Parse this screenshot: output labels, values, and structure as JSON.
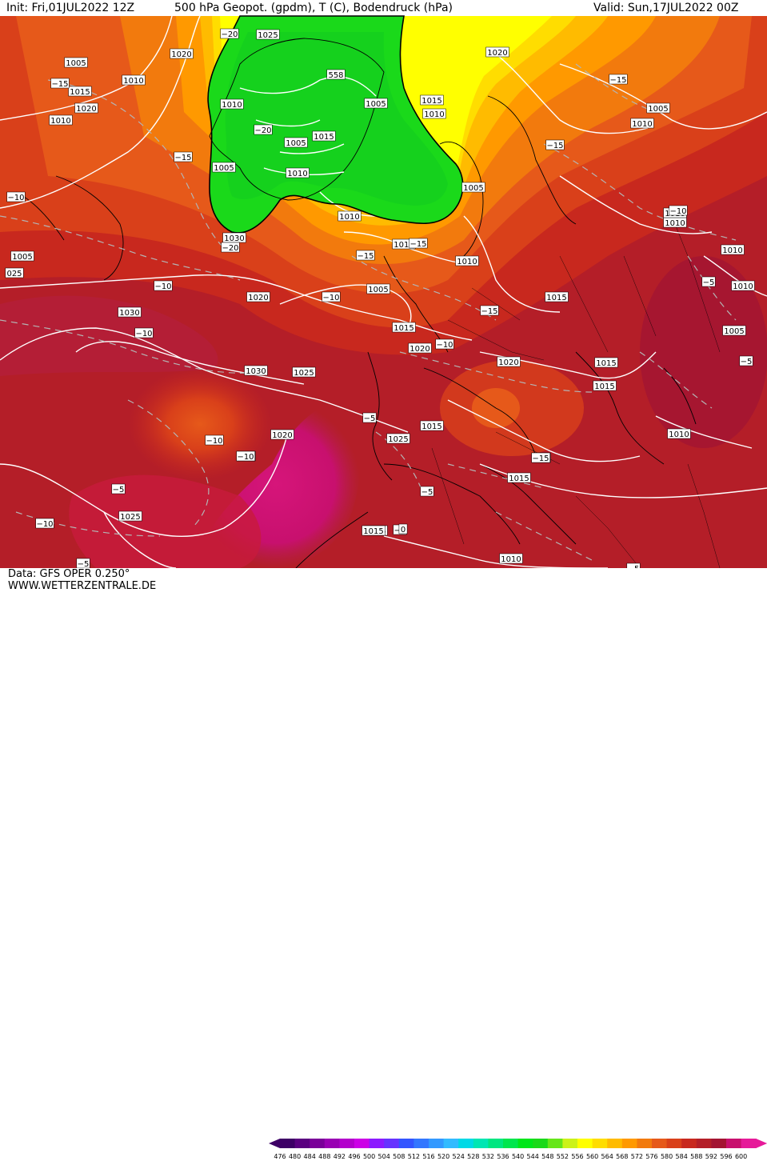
{
  "header": {
    "init": "Init: Fri,01JUL2022 12Z",
    "title": "500 hPa Geopot. (gpdm), T (C), Bodendruck (hPa)",
    "valid": "Valid: Sun,17JUL2022 00Z"
  },
  "footer": {
    "data_source": "Data: GFS OPER 0.250°",
    "site": "WWW.WETTERZENTRALE.DE"
  },
  "colorbar": {
    "ticks": [
      "476",
      "480",
      "484",
      "488",
      "492",
      "496",
      "500",
      "504",
      "508",
      "512",
      "516",
      "520",
      "524",
      "528",
      "532",
      "536",
      "540",
      "544",
      "548",
      "552",
      "556",
      "560",
      "564",
      "568",
      "572",
      "576",
      "580",
      "584",
      "588",
      "592",
      "596",
      "600"
    ],
    "colors": [
      "#3d0066",
      "#5a0080",
      "#7a0099",
      "#9900b3",
      "#b300cc",
      "#cc00e6",
      "#8c1aff",
      "#6633ff",
      "#3355ff",
      "#3377ff",
      "#3399ff",
      "#33bbff",
      "#00d9e6",
      "#00e6b3",
      "#00e680",
      "#00e64d",
      "#00e61a",
      "#1ad91a",
      "#66e61a",
      "#ccf21a",
      "#ffff00",
      "#ffdd00",
      "#ffbb00",
      "#ff9900",
      "#f27a0d",
      "#e6591a",
      "#d9401a",
      "#c8281e",
      "#b41e28",
      "#a31432",
      "#c8106e",
      "#e61a99"
    ]
  },
  "pressure_labels": [
    "1005",
    "1010",
    "1015",
    "1020",
    "1025",
    "1030",
    "558",
    "1010",
    "1005",
    "1015",
    "1005",
    "1010",
    "1015",
    "1010",
    "1005",
    "1010",
    "1010",
    "1005",
    "1020",
    "1015",
    "1010",
    "1005",
    "1010",
    "1005",
    "1015",
    "1020",
    "1010",
    "1005",
    "1020",
    "1030",
    "1030",
    "1025",
    "1020",
    "1025",
    "1015",
    "1025",
    "1015",
    "1010",
    "1015",
    "1015",
    "1020",
    "1010",
    "1010",
    "1005",
    "1010",
    "1010",
    "1015",
    "1020",
    "1010",
    "1015",
    "025"
  ],
  "temperature_labels": [
    "−20",
    "−15",
    "−15",
    "−10",
    "−20",
    "−15",
    "−20",
    "−10",
    "−15",
    "−15",
    "−10",
    "−10",
    "−10",
    "−15",
    "−10",
    "−15",
    "−10",
    "−5",
    "−10",
    "−5",
    "−5",
    "−10",
    "−5",
    "−5",
    "−10",
    "−5",
    "−5",
    "−5",
    "−15",
    "0",
    "−10"
  ]
}
